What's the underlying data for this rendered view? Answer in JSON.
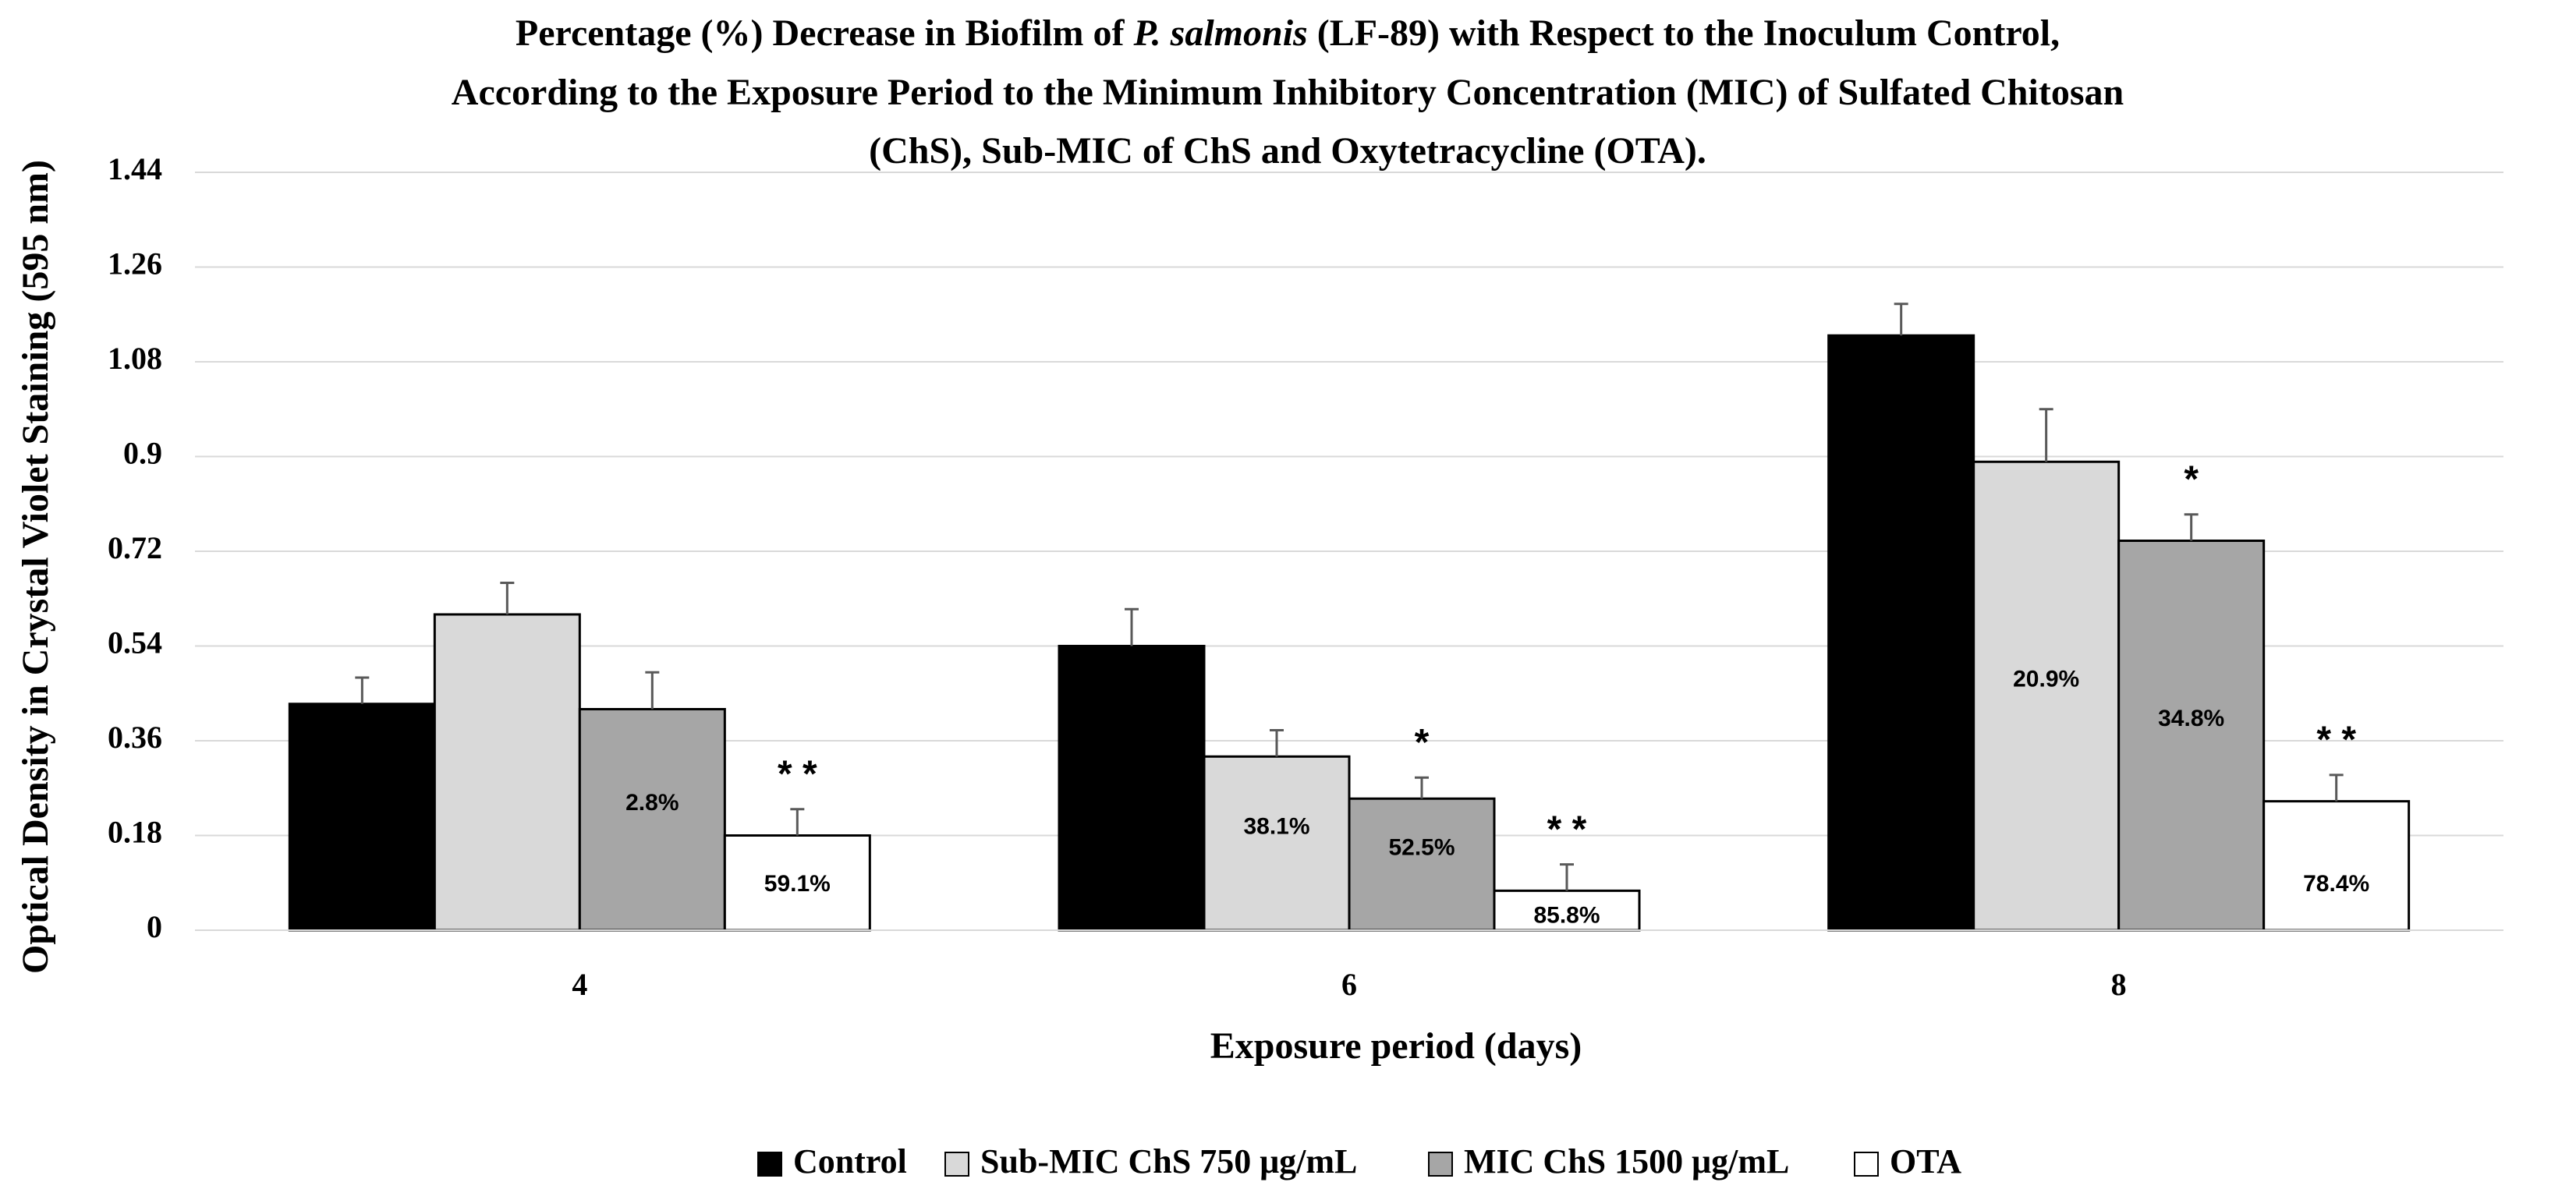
{
  "chart_data": {
    "type": "bar",
    "title_lines": [
      {
        "before": "Percentage (%) Decrease in Biofilm of ",
        "italic": "P. salmonis",
        "after": " (LF-89) with Respect to the Inoculum Control,"
      },
      {
        "before": "According to the Exposure Period to the Minimum Inhibitory Concentration (MIC) of Sulfated Chitosan",
        "italic": "",
        "after": ""
      },
      {
        "before": "(ChS), Sub-MIC of ChS and Oxytetracycline (OTA).",
        "italic": "",
        "after": ""
      }
    ],
    "xlabel": "Exposure period (days)",
    "ylabel": "Optical Density in Crystal Violet Staining (595 nm)",
    "ylim": [
      0,
      1.44
    ],
    "yticks": [
      "0",
      "0.18",
      "0.36",
      "0.54",
      "0.72",
      "0.9",
      "1.08",
      "1.26",
      "1.44"
    ],
    "categories": [
      "4",
      "6",
      "8"
    ],
    "grid": true,
    "legend_position": "bottom",
    "series": [
      {
        "name": "Control",
        "color": "#000000",
        "values": [
          0.43,
          0.54,
          1.13
        ],
        "errors": [
          0.05,
          0.07,
          0.06
        ],
        "labels": [
          "",
          "",
          ""
        ],
        "markers": [
          "",
          "",
          ""
        ]
      },
      {
        "name": "Sub-MIC ChS 750 μg/mL",
        "color": "#d9d9d9",
        "values": [
          0.6,
          0.33,
          0.89
        ],
        "errors": [
          0.06,
          0.05,
          0.1
        ],
        "labels": [
          "",
          "38.1%",
          "20.9%"
        ],
        "markers": [
          "",
          "",
          ""
        ]
      },
      {
        "name": "MIC ChS 1500 μg/mL",
        "color": "#a6a6a6",
        "values": [
          0.42,
          0.25,
          0.74
        ],
        "errors": [
          0.07,
          0.04,
          0.05
        ],
        "labels": [
          "2.8%",
          "52.5%",
          "34.8%"
        ],
        "markers": [
          "",
          "*",
          "*"
        ]
      },
      {
        "name": "OTA",
        "color": "#ffffff",
        "values": [
          0.18,
          0.075,
          0.245
        ],
        "errors": [
          0.05,
          0.05,
          0.05
        ],
        "labels": [
          "59.1%",
          "85.8%",
          "78.4%"
        ],
        "markers": [
          "* *",
          "* *",
          "* *"
        ]
      }
    ]
  }
}
